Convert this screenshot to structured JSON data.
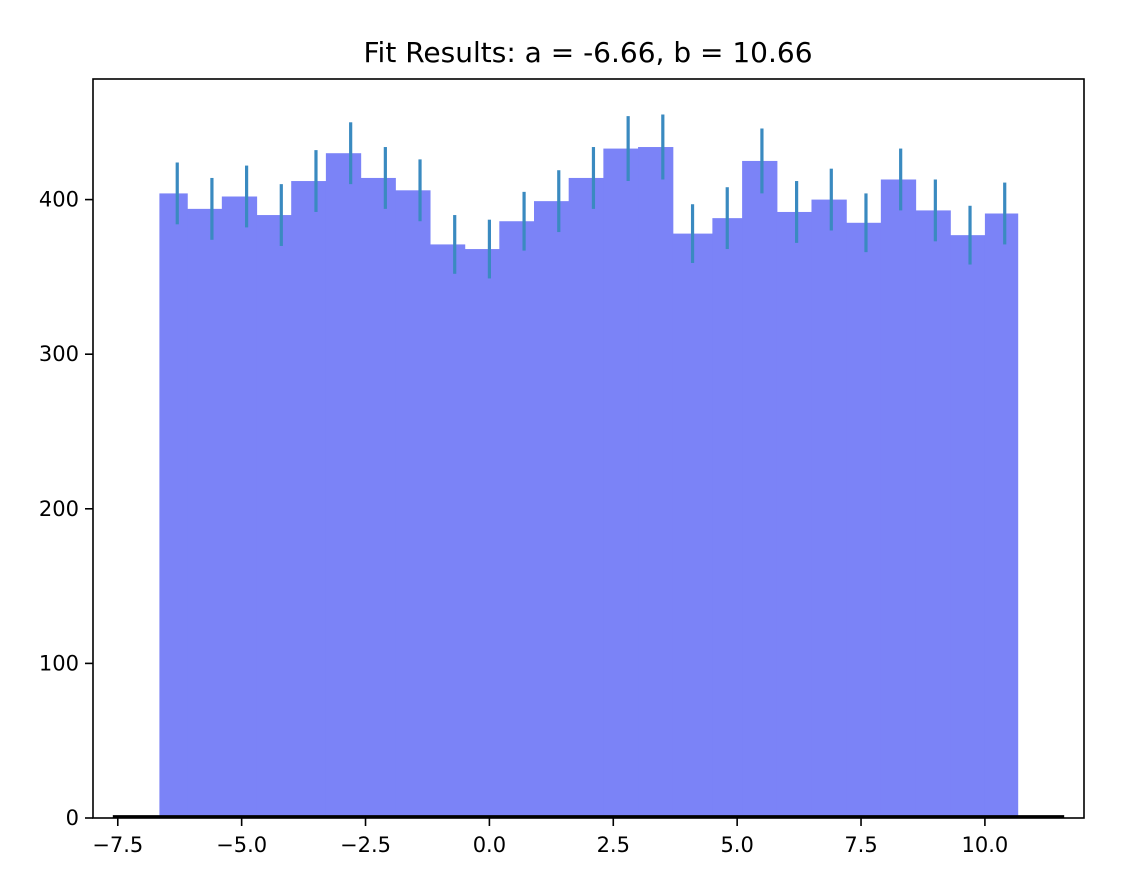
{
  "chart_data": {
    "type": "bar",
    "title": "Fit Results: a = -6.66,  b = 10.66",
    "xlabel": "",
    "ylabel": "",
    "xlim": [
      -8.0,
      12.0
    ],
    "ylim": [
      0,
      478
    ],
    "grid": false,
    "colors": {
      "bars": "#7b83f7",
      "errorbars": "#3a8ac0",
      "fit_line": "#000000"
    },
    "x_ticks": [
      -7.5,
      -5.0,
      -2.5,
      0.0,
      2.5,
      5.0,
      7.5,
      10.0
    ],
    "x_tick_labels": [
      "−7.5",
      "−5.0",
      "−2.5",
      "0.0",
      "2.5",
      "5.0",
      "7.5",
      "10.0"
    ],
    "y_ticks": [
      0,
      100,
      200,
      300,
      400
    ],
    "y_tick_labels": [
      "0",
      "100",
      "200",
      "300",
      "400"
    ],
    "bin_edges": [
      -6.66,
      -6.1,
      -5.4,
      -4.7,
      -4.0,
      -3.3,
      -2.6,
      -1.9,
      -1.2,
      -0.5,
      0.2,
      0.9,
      1.6,
      2.3,
      3.0,
      3.7,
      4.5,
      5.1,
      5.8,
      6.5,
      7.2,
      7.9,
      8.6,
      9.3,
      10.0,
      10.66
    ],
    "counts": [
      404,
      394,
      402,
      390,
      412,
      430,
      414,
      406,
      371,
      368,
      386,
      399,
      414,
      433,
      434,
      378,
      388,
      425,
      392,
      400,
      385,
      413,
      393,
      377,
      391
    ],
    "errorbars": {
      "x": [
        -6.3,
        -5.6,
        -4.9,
        -4.2,
        -3.5,
        -2.8,
        -2.1,
        -1.4,
        -0.7,
        0.0,
        0.7,
        1.4,
        2.1,
        2.8,
        3.5,
        4.1,
        4.8,
        5.5,
        6.2,
        6.9,
        7.6,
        8.3,
        9.0,
        9.7,
        10.4
      ],
      "y": [
        404,
        394,
        402,
        390,
        412,
        430,
        414,
        406,
        371,
        368,
        386,
        399,
        414,
        433,
        434,
        378,
        388,
        425,
        392,
        400,
        385,
        413,
        393,
        377,
        391
      ],
      "err": [
        20,
        20,
        20,
        20,
        20,
        20,
        20,
        20,
        19,
        19,
        19,
        20,
        20,
        21,
        21,
        19,
        20,
        21,
        20,
        20,
        19,
        20,
        20,
        19,
        20
      ]
    },
    "fit_line": {
      "x": [
        -7.6,
        11.6
      ],
      "y": [
        1,
        1
      ]
    }
  }
}
